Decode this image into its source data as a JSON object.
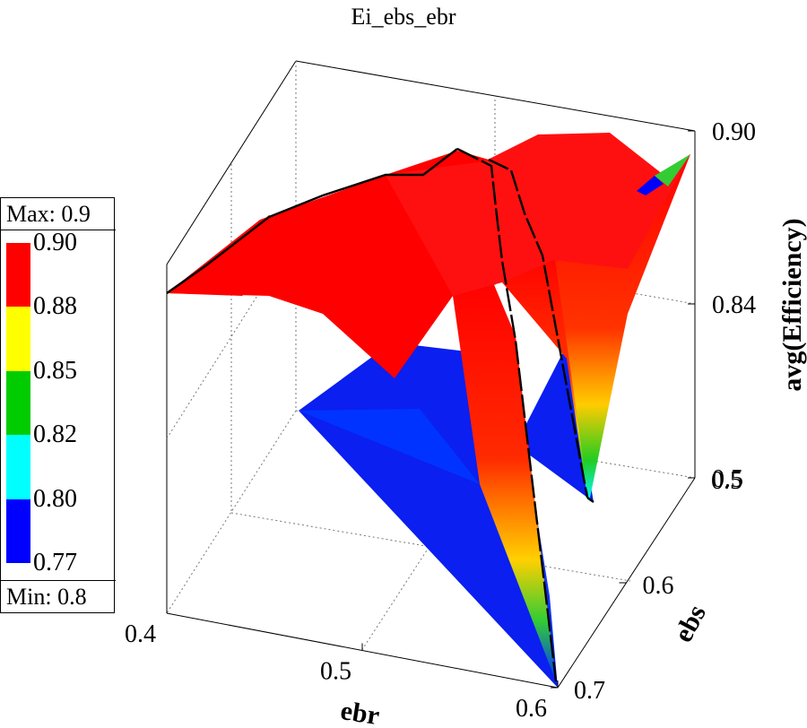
{
  "chart_data": {
    "type": "surface",
    "title": "Ei_ebs_ebr",
    "xlabel": "ebr",
    "ylabel": "ebs",
    "zlabel": "avg(Efficiency)",
    "x_ticks": [
      "0.4",
      "0.5",
      "0.6"
    ],
    "y_ticks": [
      "0.5",
      "0.6",
      "0.7"
    ],
    "z_ticks": [
      "0.90",
      "0.84",
      "0.5"
    ],
    "x": [
      0.4,
      0.5,
      0.6
    ],
    "y": [
      0.5,
      0.6,
      0.7
    ],
    "z": [
      [
        0.88,
        0.9,
        0.9
      ],
      [
        0.88,
        0.89,
        0.88
      ],
      [
        0.89,
        0.85,
        0.77
      ]
    ],
    "zlim": [
      0.77,
      0.9
    ],
    "legend": {
      "max_label": "Max: 0.9",
      "min_label": "Min: 0.8",
      "levels": [
        "0.90",
        "0.88",
        "0.85",
        "0.82",
        "0.80",
        "0.77"
      ],
      "colors": [
        "#ff0000",
        "#ffff00",
        "#00cc00",
        "#00ffff",
        "#0000ff"
      ]
    }
  }
}
